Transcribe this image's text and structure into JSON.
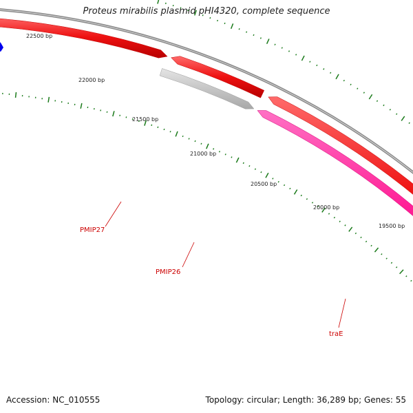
{
  "title": "Proteus mirabilis plasmid pHI4320, complete sequence",
  "accession": "Accession: NC_010555",
  "topology": "Topology: circular; Length: 36,289 bp; Genes: 55",
  "colors": {
    "tick": "#1a7a1a",
    "backbone": "#8a8a8a",
    "gene_label": "#cc0000",
    "pmip27": "#ff2020",
    "pmip26": "#c8c8c8",
    "traE_lower": "#ff2a9a",
    "traE_upper": "#ff2020",
    "marker": "#0000ee"
  },
  "ruler": {
    "labels": [
      "22500 bp",
      "22000 bp",
      "21500 bp",
      "21000 bp",
      "20500 bp",
      "20000 bp",
      "19500 bp"
    ]
  },
  "genes": [
    {
      "name": "PMIP27"
    },
    {
      "name": "PMIP26"
    },
    {
      "name": "traE"
    }
  ]
}
